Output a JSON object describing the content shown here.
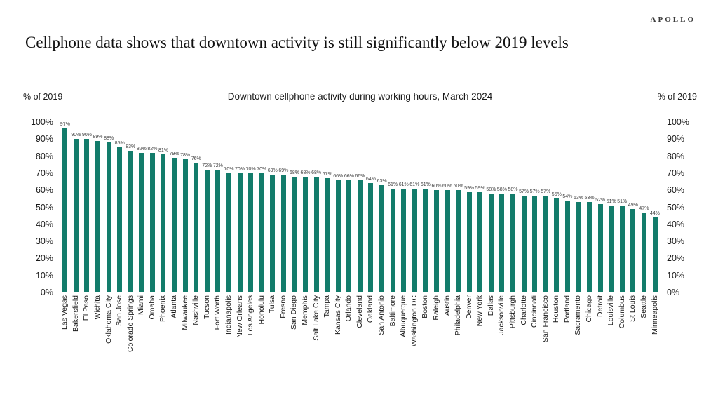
{
  "brand": "APOLLO",
  "page_title": "Cellphone data shows that downtown activity is still significantly below 2019 levels",
  "chart": {
    "title": "Downtown cellphone activity during working hours, March 2024",
    "left_axis_label": "% of 2019",
    "right_axis_label": "% of 2019",
    "bar_color": "#137c6b",
    "y_ticks": [
      "100%",
      "90%",
      "80%",
      "70%",
      "60%",
      "50%",
      "40%",
      "30%",
      "20%",
      "10%",
      "0%"
    ]
  },
  "chart_data": {
    "type": "bar",
    "title": "Downtown cellphone activity during working hours, March 2024",
    "xlabel": "",
    "ylabel": "% of 2019",
    "ylim": [
      0,
      100
    ],
    "unit": "%",
    "grid": false,
    "legend": false,
    "categories": [
      "Las Vegas",
      "Bakersfield",
      "El Paso",
      "Wichita",
      "Oklahoma City",
      "San Jose",
      "Colorado Springs",
      "Miami",
      "Omaha",
      "Phoenix",
      "Atlanta",
      "Milwaukee",
      "Nashville",
      "Tucson",
      "Fort Worth",
      "Indianapolis",
      "New Orleans",
      "Los Angeles",
      "Honolulu",
      "Tulsa",
      "Fresno",
      "San Diego",
      "Memphis",
      "Salt Lake City",
      "Tampa",
      "Kansas City",
      "Orlando",
      "Cleveland",
      "Oakland",
      "San Antonio",
      "Baltimore",
      "Albuquerque",
      "Washington DC",
      "Boston",
      "Raleigh",
      "Austin",
      "Philadelphia",
      "Denver",
      "New York",
      "Dallas",
      "Jacksonville",
      "Pittsburgh",
      "Charlotte",
      "Cincinnati",
      "San Francisco",
      "Houston",
      "Portland",
      "Sacramento",
      "Chicago",
      "Detroit",
      "Louisville",
      "Columbus",
      "St Louis",
      "Seattle",
      "Minneapolis"
    ],
    "values": [
      97,
      90,
      90,
      89,
      88,
      85,
      83,
      82,
      82,
      81,
      79,
      78,
      76,
      72,
      72,
      70,
      70,
      70,
      70,
      69,
      69,
      68,
      68,
      68,
      67,
      66,
      66,
      66,
      64,
      63,
      61,
      61,
      61,
      61,
      60,
      60,
      60,
      59,
      59,
      58,
      58,
      58,
      57,
      57,
      57,
      55,
      54,
      53,
      53,
      52,
      51,
      51,
      49,
      47,
      44
    ]
  }
}
